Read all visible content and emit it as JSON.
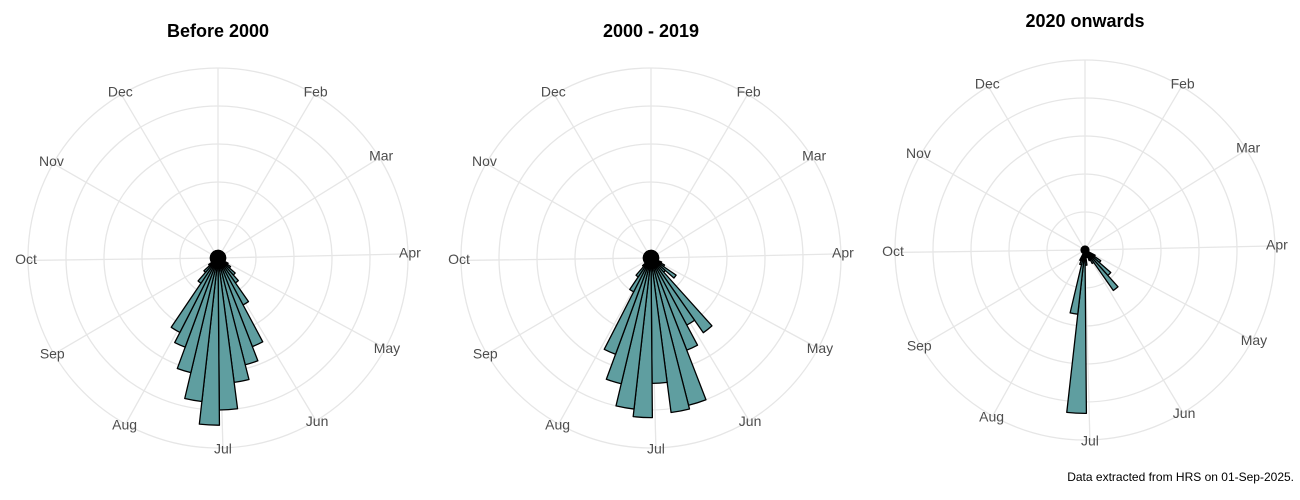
{
  "chart_data": [
    {
      "type": "polar-bar",
      "title": "Before 2000",
      "color": "#5f9ea0",
      "bin_width": 7,
      "grid": true,
      "xlim": [
        0,
        365
      ],
      "ylim": [
        0,
        50
      ],
      "yticks": [
        10,
        20,
        30,
        40,
        50
      ],
      "xticks": [
        {
          "value": 31,
          "label": "Feb"
        },
        {
          "value": 59,
          "label": "Mar"
        },
        {
          "value": 90,
          "label": "Apr"
        },
        {
          "value": 120,
          "label": "May"
        },
        {
          "value": 151,
          "label": "Jun"
        },
        {
          "value": 181,
          "label": "Jul"
        },
        {
          "value": 212,
          "label": "Aug"
        },
        {
          "value": 243,
          "label": "Sep"
        },
        {
          "value": 273,
          "label": "Oct"
        },
        {
          "value": 304,
          "label": "Nov"
        },
        {
          "value": 334,
          "label": "Dec"
        }
      ],
      "x": [
        0,
        7,
        14,
        21,
        28,
        35,
        42,
        49,
        56,
        63,
        70,
        77,
        84,
        91,
        98,
        105,
        112,
        119,
        126,
        133,
        140,
        147,
        154,
        161,
        168,
        175,
        182,
        189,
        196,
        203,
        210,
        217,
        224,
        231,
        238,
        245,
        252,
        259,
        266,
        273,
        280,
        287,
        294,
        301,
        308,
        315,
        322,
        329,
        336,
        343,
        350,
        357
      ],
      "values": [
        2,
        2,
        2,
        2,
        2,
        2,
        2,
        2,
        2,
        2,
        2,
        2,
        2,
        2,
        2,
        2,
        2,
        3,
        4,
        6,
        8,
        14,
        25,
        29,
        33,
        40,
        44,
        38,
        31,
        25,
        22,
        8,
        5,
        3,
        2,
        2,
        2,
        2,
        2,
        2,
        2,
        2,
        2,
        2,
        2,
        2,
        2,
        2,
        2,
        2,
        2,
        2
      ]
    },
    {
      "type": "polar-bar",
      "title": "2000 - 2019",
      "color": "#5f9ea0",
      "bin_width": 7,
      "grid": true,
      "xlim": [
        0,
        365
      ],
      "ylim": [
        0,
        50
      ],
      "yticks": [
        10,
        20,
        30,
        40,
        50
      ],
      "xticks": [
        {
          "value": 31,
          "label": "Feb"
        },
        {
          "value": 59,
          "label": "Mar"
        },
        {
          "value": 90,
          "label": "Apr"
        },
        {
          "value": 120,
          "label": "May"
        },
        {
          "value": 151,
          "label": "Jun"
        },
        {
          "value": 181,
          "label": "Jul"
        },
        {
          "value": 212,
          "label": "Aug"
        },
        {
          "value": 243,
          "label": "Sep"
        },
        {
          "value": 273,
          "label": "Oct"
        },
        {
          "value": 304,
          "label": "Nov"
        },
        {
          "value": 334,
          "label": "Dec"
        }
      ],
      "x": [
        0,
        7,
        14,
        21,
        28,
        35,
        42,
        49,
        56,
        63,
        70,
        77,
        84,
        91,
        98,
        105,
        112,
        119,
        126,
        133,
        140,
        147,
        154,
        161,
        168,
        175,
        182,
        189,
        196,
        203,
        210,
        217,
        224,
        231,
        238,
        245,
        252,
        259,
        266,
        273,
        280,
        287,
        294,
        301,
        308,
        315,
        322,
        329,
        336,
        343,
        350,
        357
      ],
      "values": [
        2,
        2,
        2,
        2,
        2,
        2,
        2,
        2,
        2,
        2,
        2,
        2,
        2,
        2,
        2,
        2,
        3,
        4,
        8,
        5,
        24,
        20,
        26,
        40,
        41,
        33,
        42,
        40,
        34,
        27,
        10,
        6,
        3,
        2,
        2,
        2,
        2,
        2,
        2,
        2,
        2,
        2,
        2,
        2,
        2,
        2,
        2,
        2,
        2,
        2,
        2,
        2
      ]
    },
    {
      "type": "polar-bar",
      "title": "2020 onwards",
      "color": "#5f9ea0",
      "bin_width": 7,
      "grid": true,
      "xlim": [
        0,
        365
      ],
      "ylim": [
        0,
        50
      ],
      "yticks": [
        10,
        20,
        30,
        40,
        50
      ],
      "xticks": [
        {
          "value": 31,
          "label": "Feb"
        },
        {
          "value": 59,
          "label": "Mar"
        },
        {
          "value": 90,
          "label": "Apr"
        },
        {
          "value": 120,
          "label": "May"
        },
        {
          "value": 151,
          "label": "Jun"
        },
        {
          "value": 181,
          "label": "Jul"
        },
        {
          "value": 212,
          "label": "Aug"
        },
        {
          "value": 243,
          "label": "Sep"
        },
        {
          "value": 273,
          "label": "Oct"
        },
        {
          "value": 304,
          "label": "Nov"
        },
        {
          "value": 334,
          "label": "Dec"
        }
      ],
      "x": [
        0,
        7,
        14,
        21,
        28,
        35,
        42,
        49,
        56,
        63,
        70,
        77,
        84,
        91,
        98,
        105,
        112,
        119,
        126,
        133,
        140,
        147,
        154,
        161,
        168,
        175,
        182,
        189,
        196,
        203,
        210,
        217,
        224,
        231,
        238,
        245,
        252,
        259,
        266,
        273,
        280,
        287,
        294,
        301,
        308,
        315,
        322,
        329,
        336,
        343,
        350,
        357
      ],
      "values": [
        1,
        1,
        1,
        1,
        1,
        1,
        1,
        1,
        1,
        1,
        1,
        1,
        1,
        1,
        1,
        1,
        1,
        3,
        5,
        9,
        13,
        4,
        3,
        2,
        2,
        4,
        43,
        17,
        4,
        3,
        1,
        1,
        1,
        1,
        1,
        1,
        1,
        1,
        1,
        1,
        1,
        1,
        1,
        1,
        1,
        1,
        1,
        1,
        1,
        1,
        1,
        1
      ]
    }
  ],
  "caption": "Data extracted from HRS on 01-Sep-2025."
}
